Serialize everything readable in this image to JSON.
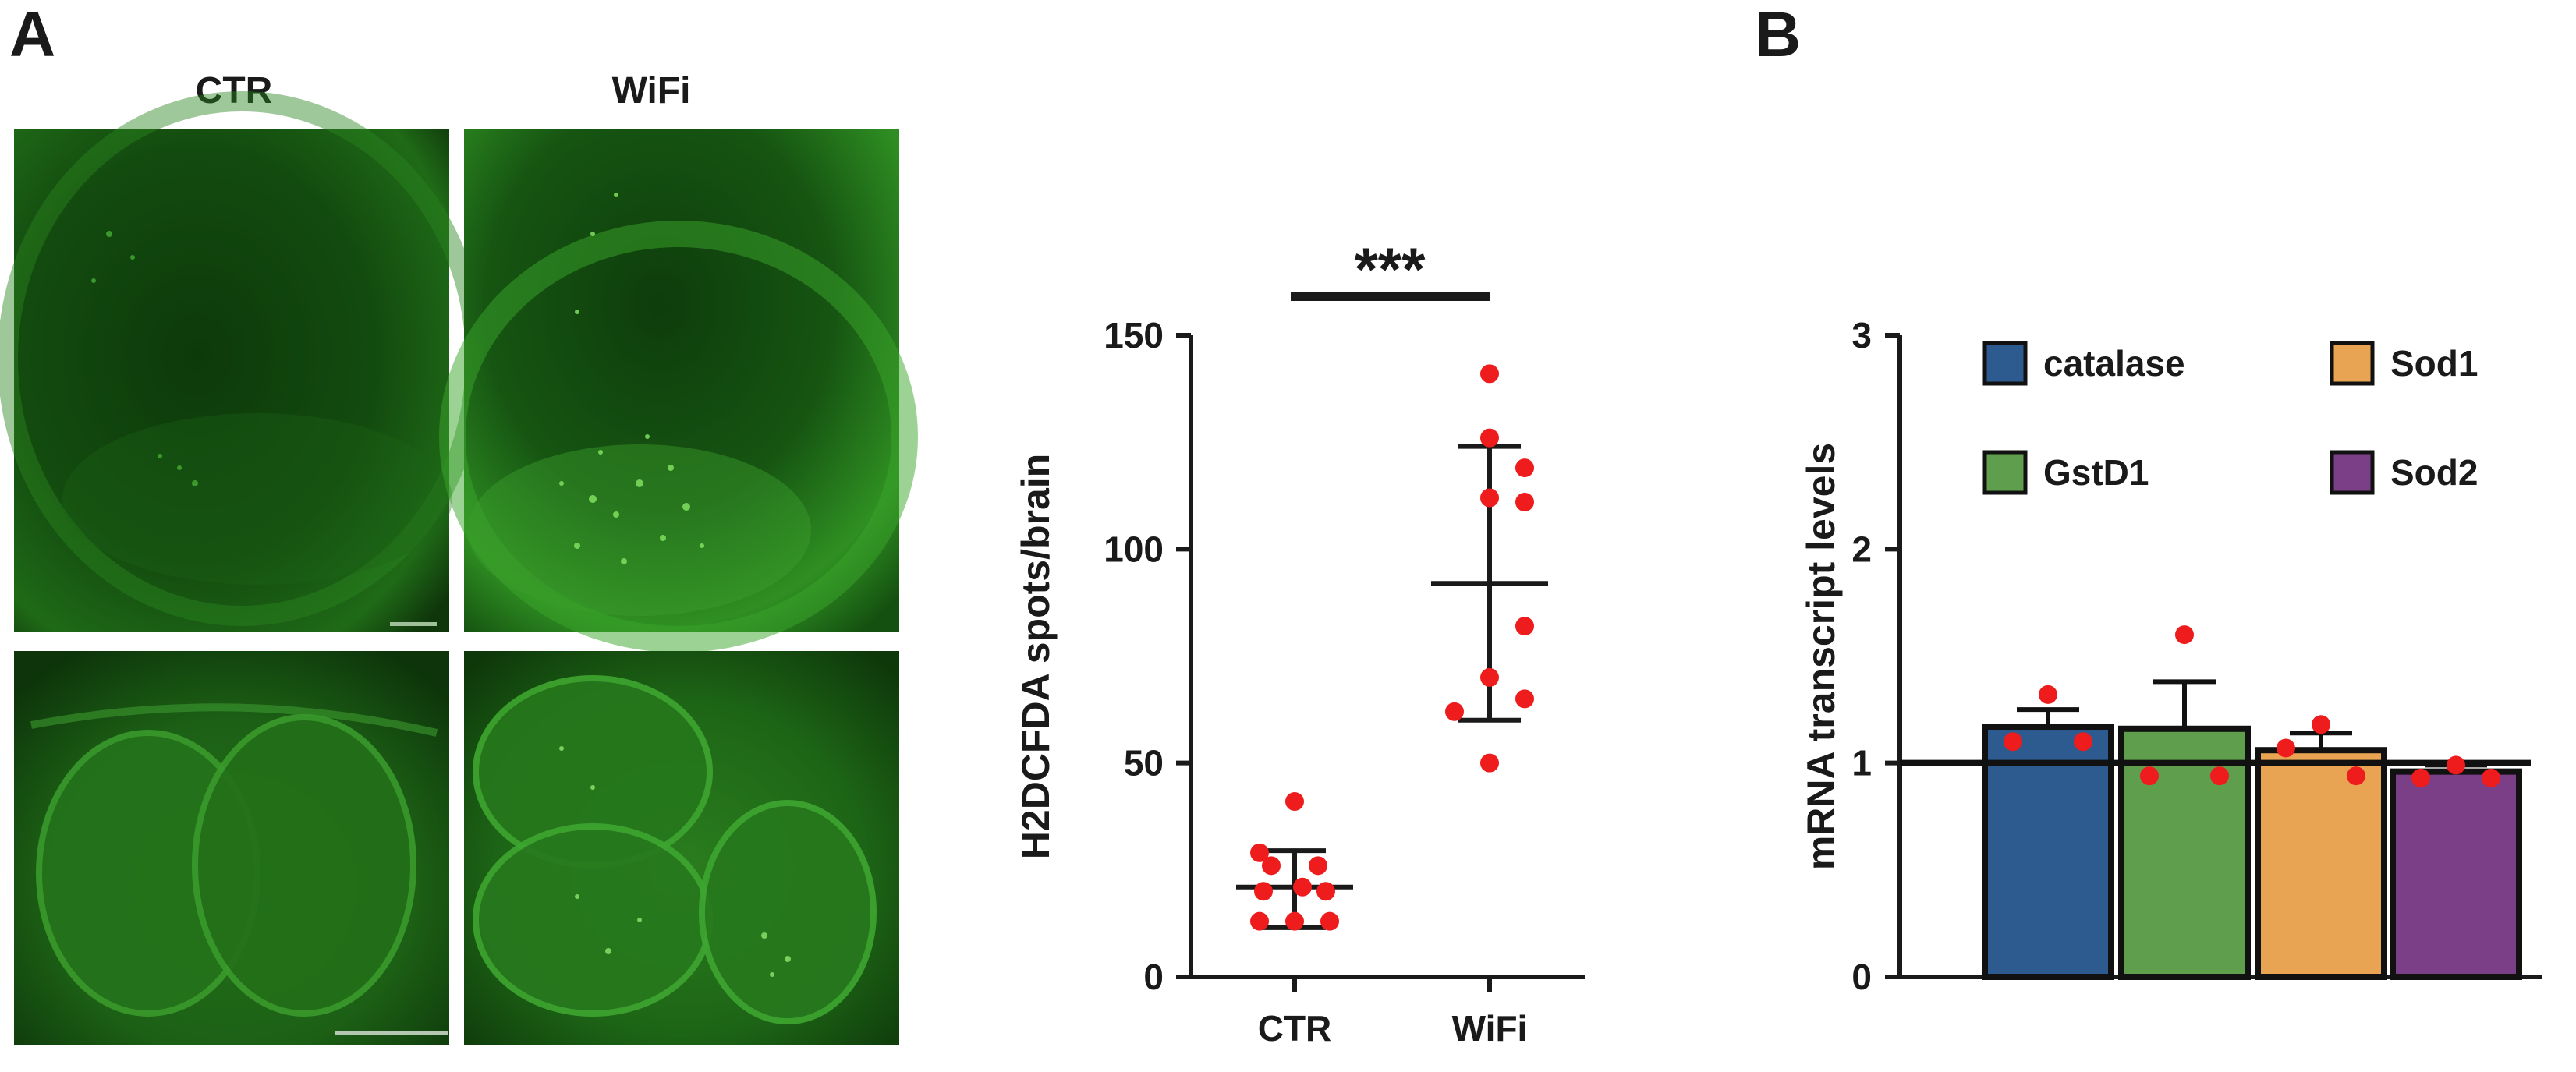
{
  "panel_labels": {
    "a": "A",
    "b": "B"
  },
  "micrographs": {
    "col_left": "CTR",
    "col_right": "WiFi"
  },
  "chart_data": [
    {
      "type": "scatter",
      "ylabel": "H2DCFDA spots/brain",
      "xlabel": "",
      "categories": [
        "CTR",
        "WiFi"
      ],
      "ylim": [
        0,
        150
      ],
      "yticks": [
        0,
        50,
        100,
        150
      ],
      "series": [
        {
          "category": "CTR",
          "points": [
            41,
            29,
            26,
            26,
            21,
            20,
            20,
            13,
            13,
            13
          ],
          "mean": 21,
          "sd_low": 11.5,
          "sd_high": 29.5
        },
        {
          "category": "WiFi",
          "points": [
            141,
            126,
            119,
            112,
            111,
            82,
            70,
            65,
            62,
            50
          ],
          "mean": 92,
          "sd_low": 60,
          "sd_high": 124
        }
      ],
      "significance": "***",
      "point_color": "#ee1c1c"
    },
    {
      "type": "bar",
      "ylabel": "mRNA transcript levels",
      "xlabel": "",
      "categories": [
        "catalase",
        "GstD1",
        "Sod1",
        "Sod2"
      ],
      "values": [
        1.17,
        1.16,
        1.06,
        0.96
      ],
      "errors": [
        0.08,
        0.22,
        0.08,
        0.03
      ],
      "points": [
        [
          1.32,
          1.1,
          1.1
        ],
        [
          1.6,
          0.94,
          0.94
        ],
        [
          1.18,
          1.07,
          0.94
        ],
        [
          0.99,
          0.93,
          0.93
        ]
      ],
      "colors": [
        "#2e5b8f",
        "#5f9e4c",
        "#e8a452",
        "#7a3f86"
      ],
      "ylim": [
        0,
        3
      ],
      "yticks": [
        0,
        1,
        2,
        3
      ],
      "reference_line": 1,
      "legend": [
        "catalase",
        "Sod1",
        "GstD1",
        "Sod2"
      ],
      "legend_position": "top-right",
      "point_color": "#ee1c1c"
    }
  ]
}
